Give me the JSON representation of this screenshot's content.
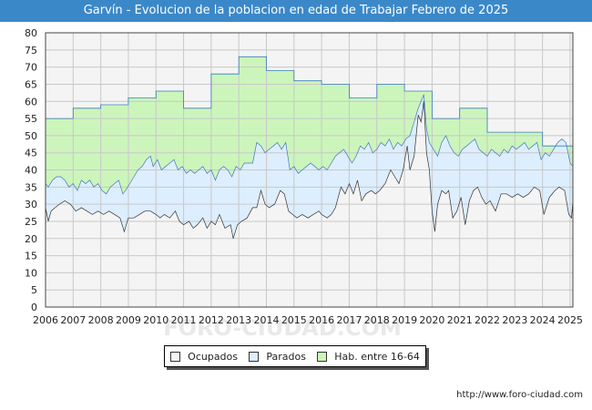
{
  "chart_data": {
    "type": "area",
    "title": "Garvín - Evolucion de la poblacion en edad de Trabajar Febrero de 2025",
    "xlabel": "",
    "ylabel": "",
    "ylim": [
      0,
      80
    ],
    "yticks": [
      0,
      5,
      10,
      15,
      20,
      25,
      30,
      35,
      40,
      45,
      50,
      55,
      60,
      65,
      70,
      75,
      80
    ],
    "xlim": [
      2006,
      2025.1
    ],
    "xticks": [
      2006,
      2007,
      2008,
      2009,
      2010,
      2011,
      2012,
      2013,
      2014,
      2015,
      2016,
      2017,
      2018,
      2019,
      2020,
      2021,
      2022,
      2023,
      2024,
      2025
    ],
    "grid": true,
    "legend_position": "bottom",
    "series": [
      {
        "name": "Ocupados",
        "color": "#f4f4f4",
        "line": "#333333",
        "points": [
          [
            2006.0,
            29
          ],
          [
            2006.1,
            25
          ],
          [
            2006.2,
            28
          ],
          [
            2006.35,
            29
          ],
          [
            2006.5,
            30
          ],
          [
            2006.7,
            31
          ],
          [
            2006.9,
            30
          ],
          [
            2007.1,
            28
          ],
          [
            2007.3,
            29
          ],
          [
            2007.5,
            28
          ],
          [
            2007.7,
            27
          ],
          [
            2007.9,
            28
          ],
          [
            2008.1,
            27
          ],
          [
            2008.3,
            28
          ],
          [
            2008.5,
            27
          ],
          [
            2008.7,
            26
          ],
          [
            2008.85,
            22
          ],
          [
            2009.0,
            26
          ],
          [
            2009.2,
            26
          ],
          [
            2009.4,
            27
          ],
          [
            2009.6,
            28
          ],
          [
            2009.8,
            28
          ],
          [
            2010.0,
            27
          ],
          [
            2010.15,
            26
          ],
          [
            2010.3,
            27
          ],
          [
            2010.5,
            26
          ],
          [
            2010.7,
            28
          ],
          [
            2010.85,
            25
          ],
          [
            2011.0,
            24
          ],
          [
            2011.2,
            25
          ],
          [
            2011.35,
            23
          ],
          [
            2011.5,
            24
          ],
          [
            2011.7,
            26
          ],
          [
            2011.85,
            23
          ],
          [
            2012.0,
            25
          ],
          [
            2012.15,
            24
          ],
          [
            2012.3,
            27
          ],
          [
            2012.5,
            23
          ],
          [
            2012.7,
            24
          ],
          [
            2012.8,
            20
          ],
          [
            2012.95,
            24
          ],
          [
            2013.1,
            25
          ],
          [
            2013.3,
            26
          ],
          [
            2013.5,
            29
          ],
          [
            2013.65,
            29
          ],
          [
            2013.8,
            34
          ],
          [
            2013.95,
            30
          ],
          [
            2014.1,
            29
          ],
          [
            2014.3,
            30
          ],
          [
            2014.5,
            34
          ],
          [
            2014.65,
            33
          ],
          [
            2014.8,
            28
          ],
          [
            2014.95,
            27
          ],
          [
            2015.1,
            26
          ],
          [
            2015.3,
            27
          ],
          [
            2015.5,
            26
          ],
          [
            2015.7,
            27
          ],
          [
            2015.9,
            28
          ],
          [
            2016.0,
            27
          ],
          [
            2016.2,
            26
          ],
          [
            2016.35,
            27
          ],
          [
            2016.5,
            29
          ],
          [
            2016.7,
            35
          ],
          [
            2016.85,
            33
          ],
          [
            2017.0,
            36
          ],
          [
            2017.15,
            33
          ],
          [
            2017.3,
            37
          ],
          [
            2017.45,
            31
          ],
          [
            2017.6,
            33
          ],
          [
            2017.8,
            34
          ],
          [
            2017.95,
            33
          ],
          [
            2018.1,
            34
          ],
          [
            2018.3,
            36
          ],
          [
            2018.5,
            40
          ],
          [
            2018.65,
            38
          ],
          [
            2018.8,
            36
          ],
          [
            2018.95,
            40
          ],
          [
            2019.1,
            47
          ],
          [
            2019.2,
            40
          ],
          [
            2019.35,
            44
          ],
          [
            2019.5,
            56
          ],
          [
            2019.6,
            54
          ],
          [
            2019.7,
            60
          ],
          [
            2019.8,
            45
          ],
          [
            2019.9,
            40
          ],
          [
            2020.0,
            28
          ],
          [
            2020.1,
            22
          ],
          [
            2020.2,
            30
          ],
          [
            2020.35,
            34
          ],
          [
            2020.5,
            33
          ],
          [
            2020.6,
            34
          ],
          [
            2020.75,
            26
          ],
          [
            2020.9,
            28
          ],
          [
            2021.05,
            32
          ],
          [
            2021.2,
            24
          ],
          [
            2021.35,
            31
          ],
          [
            2021.5,
            34
          ],
          [
            2021.65,
            35
          ],
          [
            2021.8,
            32
          ],
          [
            2021.95,
            30
          ],
          [
            2022.1,
            31
          ],
          [
            2022.3,
            28
          ],
          [
            2022.5,
            33
          ],
          [
            2022.7,
            33
          ],
          [
            2022.9,
            32
          ],
          [
            2023.1,
            33
          ],
          [
            2023.3,
            32
          ],
          [
            2023.5,
            33
          ],
          [
            2023.7,
            35
          ],
          [
            2023.9,
            34
          ],
          [
            2024.05,
            27
          ],
          [
            2024.25,
            32
          ],
          [
            2024.45,
            34
          ],
          [
            2024.6,
            35
          ],
          [
            2024.8,
            34
          ],
          [
            2024.95,
            27
          ],
          [
            2025.05,
            26
          ],
          [
            2025.1,
            31
          ]
        ]
      },
      {
        "name": "Parados",
        "color": "#ddeeff",
        "line": "#4477bb",
        "points": [
          [
            2006.0,
            36
          ],
          [
            2006.1,
            35
          ],
          [
            2006.25,
            37
          ],
          [
            2006.4,
            38
          ],
          [
            2006.55,
            38
          ],
          [
            2006.7,
            37
          ],
          [
            2006.85,
            35
          ],
          [
            2007.0,
            36
          ],
          [
            2007.15,
            34
          ],
          [
            2007.3,
            37
          ],
          [
            2007.45,
            36
          ],
          [
            2007.6,
            37
          ],
          [
            2007.75,
            35
          ],
          [
            2007.9,
            36
          ],
          [
            2008.05,
            34
          ],
          [
            2008.2,
            33
          ],
          [
            2008.35,
            35
          ],
          [
            2008.5,
            36
          ],
          [
            2008.65,
            37
          ],
          [
            2008.8,
            33
          ],
          [
            2008.9,
            34
          ],
          [
            2009.05,
            36
          ],
          [
            2009.2,
            38
          ],
          [
            2009.35,
            40
          ],
          [
            2009.5,
            41
          ],
          [
            2009.65,
            43
          ],
          [
            2009.8,
            44
          ],
          [
            2009.9,
            41
          ],
          [
            2010.05,
            43
          ],
          [
            2010.2,
            40
          ],
          [
            2010.35,
            41
          ],
          [
            2010.5,
            42
          ],
          [
            2010.65,
            43
          ],
          [
            2010.8,
            40
          ],
          [
            2010.95,
            41
          ],
          [
            2011.1,
            39
          ],
          [
            2011.25,
            40
          ],
          [
            2011.4,
            39
          ],
          [
            2011.55,
            40
          ],
          [
            2011.7,
            41
          ],
          [
            2011.85,
            39
          ],
          [
            2012.0,
            40
          ],
          [
            2012.15,
            37
          ],
          [
            2012.3,
            40
          ],
          [
            2012.45,
            41
          ],
          [
            2012.6,
            40
          ],
          [
            2012.75,
            38
          ],
          [
            2012.9,
            41
          ],
          [
            2013.05,
            40
          ],
          [
            2013.2,
            42
          ],
          [
            2013.35,
            42
          ],
          [
            2013.5,
            42
          ],
          [
            2013.65,
            48
          ],
          [
            2013.8,
            47
          ],
          [
            2013.95,
            45
          ],
          [
            2014.1,
            46
          ],
          [
            2014.25,
            47
          ],
          [
            2014.4,
            48
          ],
          [
            2014.55,
            46
          ],
          [
            2014.7,
            48
          ],
          [
            2014.85,
            40
          ],
          [
            2015.0,
            41
          ],
          [
            2015.15,
            39
          ],
          [
            2015.3,
            40
          ],
          [
            2015.45,
            41
          ],
          [
            2015.6,
            42
          ],
          [
            2015.75,
            41
          ],
          [
            2015.9,
            40
          ],
          [
            2016.05,
            41
          ],
          [
            2016.2,
            40
          ],
          [
            2016.35,
            42
          ],
          [
            2016.5,
            44
          ],
          [
            2016.65,
            45
          ],
          [
            2016.8,
            46
          ],
          [
            2016.95,
            44
          ],
          [
            2017.1,
            42
          ],
          [
            2017.25,
            44
          ],
          [
            2017.4,
            47
          ],
          [
            2017.55,
            46
          ],
          [
            2017.7,
            48
          ],
          [
            2017.85,
            45
          ],
          [
            2018.0,
            46
          ],
          [
            2018.15,
            48
          ],
          [
            2018.3,
            47
          ],
          [
            2018.45,
            49
          ],
          [
            2018.6,
            46
          ],
          [
            2018.75,
            48
          ],
          [
            2018.9,
            47
          ],
          [
            2019.05,
            49
          ],
          [
            2019.2,
            50
          ],
          [
            2019.35,
            54
          ],
          [
            2019.5,
            58
          ],
          [
            2019.6,
            60
          ],
          [
            2019.7,
            62
          ],
          [
            2019.8,
            52
          ],
          [
            2019.9,
            48
          ],
          [
            2020.05,
            46
          ],
          [
            2020.2,
            44
          ],
          [
            2020.35,
            48
          ],
          [
            2020.5,
            50
          ],
          [
            2020.65,
            47
          ],
          [
            2020.8,
            45
          ],
          [
            2020.95,
            44
          ],
          [
            2021.1,
            46
          ],
          [
            2021.25,
            47
          ],
          [
            2021.4,
            48
          ],
          [
            2021.55,
            49
          ],
          [
            2021.7,
            46
          ],
          [
            2021.85,
            45
          ],
          [
            2022.0,
            44
          ],
          [
            2022.15,
            46
          ],
          [
            2022.3,
            45
          ],
          [
            2022.45,
            44
          ],
          [
            2022.6,
            46
          ],
          [
            2022.75,
            45
          ],
          [
            2022.9,
            47
          ],
          [
            2023.05,
            46
          ],
          [
            2023.2,
            47
          ],
          [
            2023.35,
            48
          ],
          [
            2023.5,
            46
          ],
          [
            2023.65,
            47
          ],
          [
            2023.8,
            48
          ],
          [
            2023.95,
            43
          ],
          [
            2024.1,
            45
          ],
          [
            2024.25,
            44
          ],
          [
            2024.4,
            46
          ],
          [
            2024.55,
            48
          ],
          [
            2024.7,
            49
          ],
          [
            2024.85,
            48
          ],
          [
            2025.0,
            42
          ],
          [
            2025.1,
            41
          ]
        ]
      },
      {
        "name": "Hab. entre 16-64",
        "color": "#ccf5bb",
        "line": "#3a7dbc",
        "steps": [
          [
            2006.0,
            55
          ],
          [
            2007.0,
            58
          ],
          [
            2008.0,
            59
          ],
          [
            2009.0,
            61
          ],
          [
            2010.0,
            63
          ],
          [
            2011.0,
            58
          ],
          [
            2012.0,
            68
          ],
          [
            2013.0,
            73
          ],
          [
            2014.0,
            69
          ],
          [
            2015.0,
            66
          ],
          [
            2016.0,
            65
          ],
          [
            2017.0,
            61
          ],
          [
            2018.0,
            65
          ],
          [
            2019.0,
            63
          ],
          [
            2020.0,
            55
          ],
          [
            2021.0,
            58
          ],
          [
            2022.0,
            51
          ],
          [
            2023.0,
            51
          ],
          [
            2024.0,
            47
          ],
          [
            2025.0,
            47
          ]
        ]
      }
    ]
  },
  "source": "http://www.foro-ciudad.com",
  "watermark": "FORO-CIUDAD.COM"
}
